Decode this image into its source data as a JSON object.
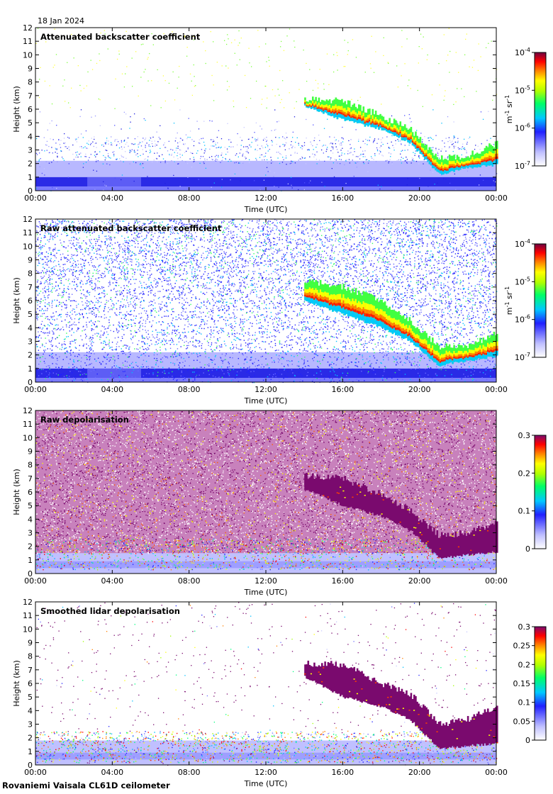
{
  "date_label": "18 Jan 2024",
  "footer_label": "Rovaniemi Vaisala CL61D ceilometer",
  "colors": {
    "backscatter_scale": [
      "#ffffff",
      "#c8c8ff",
      "#3030ff",
      "#00ccff",
      "#00ff66",
      "#aaff00",
      "#ffff00",
      "#ff8000",
      "#ff0000",
      "#800040"
    ],
    "depol_scale": [
      "#ffffff",
      "#c8c8ff",
      "#3030ff",
      "#00ccff",
      "#00ff66",
      "#aaff00",
      "#ffff00",
      "#ff8000",
      "#ff0000",
      "#800060"
    ],
    "depol_high": "#7a0a6e"
  },
  "chart_data": [
    {
      "type": "heatmap",
      "title": "Attenuated backscatter coefficient",
      "xlabel": "Time (UTC)",
      "ylabel": "Height (km)",
      "x_ticks": [
        "00:00",
        "04:00",
        "08:00",
        "12:00",
        "16:00",
        "20:00",
        "00:00"
      ],
      "xlim_hours": [
        0,
        24
      ],
      "y_ticks": [
        "0",
        "1",
        "2",
        "3",
        "4",
        "5",
        "6",
        "7",
        "8",
        "9",
        "10",
        "11",
        "12"
      ],
      "ylim_km": [
        0,
        12
      ],
      "colorbar": {
        "scale": "log",
        "range": [
          1e-07,
          0.0001
        ],
        "tick_labels": [
          "10-7",
          "10-6",
          "10-5",
          "10-4"
        ],
        "unit": "m-1 sr-1"
      },
      "cloud_layer": {
        "top_km": [
          [
            14,
            6.8
          ],
          [
            16,
            6.6
          ],
          [
            18,
            5.5
          ],
          [
            19.5,
            4.5
          ],
          [
            21,
            2.4
          ],
          [
            22.5,
            2.6
          ],
          [
            24,
            3.5
          ]
        ],
        "base_km": [
          [
            14,
            6.2
          ],
          [
            16,
            5.2
          ],
          [
            18,
            4.5
          ],
          [
            19.5,
            3.5
          ],
          [
            21,
            1.2
          ],
          [
            22.5,
            1.7
          ],
          [
            24,
            1.9
          ]
        ]
      },
      "boundary_layer_top_km": 1.0,
      "noise_level": "low"
    },
    {
      "type": "heatmap",
      "title": "Raw attenuated backscatter coefficient",
      "xlabel": "Time (UTC)",
      "ylabel": "Height (km)",
      "x_ticks": [
        "00:00",
        "04:00",
        "08:00",
        "12:00",
        "16:00",
        "20:00",
        "00:00"
      ],
      "xlim_hours": [
        0,
        24
      ],
      "y_ticks": [
        "0",
        "1",
        "2",
        "3",
        "4",
        "5",
        "6",
        "7",
        "8",
        "9",
        "10",
        "11",
        "12"
      ],
      "ylim_km": [
        0,
        12
      ],
      "colorbar": {
        "scale": "log",
        "range": [
          1e-07,
          0.0001
        ],
        "tick_labels": [
          "10-7",
          "10-6",
          "10-5",
          "10-4"
        ],
        "unit": "m-1 sr-1"
      },
      "cloud_layer": {
        "top_km": [
          [
            14,
            7.5
          ],
          [
            16,
            7.0
          ],
          [
            18,
            6.0
          ],
          [
            19.5,
            4.5
          ],
          [
            21,
            2.6
          ],
          [
            22.5,
            2.6
          ],
          [
            24,
            3.6
          ]
        ],
        "base_km": [
          [
            14,
            6.0
          ],
          [
            16,
            5.0
          ],
          [
            18,
            4.0
          ],
          [
            19.5,
            3.0
          ],
          [
            21,
            1.2
          ],
          [
            22.5,
            1.6
          ],
          [
            24,
            1.9
          ]
        ]
      },
      "boundary_layer_top_km": 1.0,
      "noise_level": "high"
    },
    {
      "type": "heatmap",
      "title": "Raw depolarisation",
      "xlabel": "Time (UTC)",
      "ylabel": "Height (km)",
      "x_ticks": [
        "00:00",
        "04:00",
        "08:00",
        "12:00",
        "16:00",
        "20:00",
        "00:00"
      ],
      "xlim_hours": [
        0,
        24
      ],
      "y_ticks": [
        "0",
        "1",
        "2",
        "3",
        "4",
        "5",
        "6",
        "7",
        "8",
        "9",
        "10",
        "11",
        "12"
      ],
      "ylim_km": [
        0,
        12
      ],
      "colorbar": {
        "scale": "linear",
        "range": [
          0,
          0.3
        ],
        "tick_labels": [
          "0",
          "0.1",
          "0.2",
          "0.3"
        ],
        "unit": ""
      },
      "cloud_layer": {
        "top_km": [
          [
            14,
            7.2
          ],
          [
            16,
            7.0
          ],
          [
            18,
            5.8
          ],
          [
            19.5,
            4.6
          ],
          [
            21,
            2.8
          ],
          [
            22.5,
            3.0
          ],
          [
            24,
            3.8
          ]
        ],
        "base_km": [
          [
            14,
            6.2
          ],
          [
            16,
            5.0
          ],
          [
            18,
            4.2
          ],
          [
            19.5,
            3.2
          ],
          [
            21,
            1.1
          ],
          [
            22.5,
            1.4
          ],
          [
            24,
            1.6
          ]
        ]
      },
      "boundary_layer_top_km": 1.5,
      "noise_level": "very-high"
    },
    {
      "type": "heatmap",
      "title": "Smoothed lidar depolarisation",
      "xlabel": "Time (UTC)",
      "ylabel": "Height (km)",
      "x_ticks": [
        "00:00",
        "04:00",
        "08:00",
        "12:00",
        "16:00",
        "20:00",
        "00:00"
      ],
      "xlim_hours": [
        0,
        24
      ],
      "y_ticks": [
        "0",
        "1",
        "2",
        "3",
        "4",
        "5",
        "6",
        "7",
        "8",
        "9",
        "10",
        "11",
        "12"
      ],
      "ylim_km": [
        0,
        12
      ],
      "colorbar": {
        "scale": "linear",
        "range": [
          0,
          0.3
        ],
        "tick_labels": [
          "0",
          "0.05",
          "0.1",
          "0.15",
          "0.2",
          "0.25",
          "0.3"
        ],
        "unit": ""
      },
      "cloud_layer": {
        "top_km": [
          [
            14,
            7.5
          ],
          [
            16,
            7.4
          ],
          [
            18,
            6.0
          ],
          [
            19.5,
            5.2
          ],
          [
            21,
            3.0
          ],
          [
            22.5,
            3.4
          ],
          [
            24,
            4.2
          ]
        ],
        "base_km": [
          [
            14,
            6.5
          ],
          [
            16,
            5.0
          ],
          [
            18,
            4.3
          ],
          [
            19.5,
            3.3
          ],
          [
            21,
            1.2
          ],
          [
            22.5,
            1.4
          ],
          [
            24,
            1.6
          ]
        ]
      },
      "boundary_layer_top_km": 1.8,
      "noise_level": "low"
    }
  ]
}
